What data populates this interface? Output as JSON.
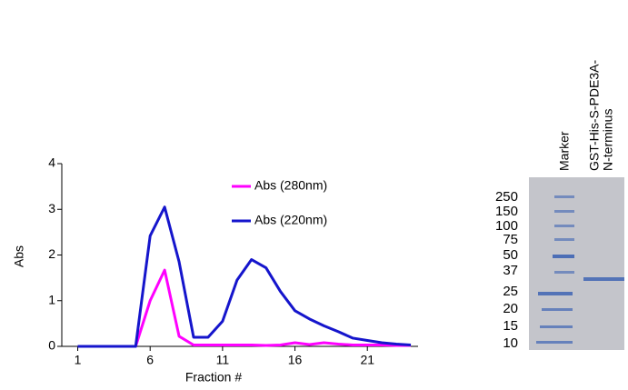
{
  "chart_data": {
    "type": "line",
    "x_label": "Fraction #",
    "y_label": "Abs",
    "x": [
      1,
      5,
      6,
      7,
      8,
      9,
      10,
      11,
      12,
      13,
      14,
      15,
      16,
      17,
      18,
      19,
      20,
      21,
      22,
      23,
      24
    ],
    "series": [
      {
        "name": "Abs (280nm)",
        "color": "#ff00ff",
        "values": [
          0,
          0,
          1.0,
          1.67,
          0.22,
          0.03,
          0.03,
          0.03,
          0.03,
          0.03,
          0.02,
          0.03,
          0.08,
          0.04,
          0.08,
          0.05,
          0.03,
          0.03,
          0.03,
          0.02,
          0.02
        ]
      },
      {
        "name": "Abs (220nm)",
        "color": "#1515cc",
        "values": [
          0,
          0,
          2.42,
          3.05,
          1.85,
          0.2,
          0.2,
          0.55,
          1.45,
          1.9,
          1.72,
          1.2,
          0.78,
          0.6,
          0.45,
          0.32,
          0.18,
          0.13,
          0.08,
          0.05,
          0.03
        ]
      }
    ],
    "xlim": [
      -0.1,
      24.5
    ],
    "xticks": [
      1,
      6,
      11,
      16,
      21
    ],
    "ylim": [
      0,
      4
    ],
    "yticks": [
      0,
      1,
      2,
      3,
      4
    ]
  },
  "gel": {
    "lanes": [
      "Marker",
      [
        "GST-His-S-PDE3A-",
        "N-terminus"
      ]
    ],
    "markers": [
      "250",
      "150",
      "100",
      "75",
      "50",
      "37",
      "25",
      "20",
      "15",
      "10"
    ]
  }
}
